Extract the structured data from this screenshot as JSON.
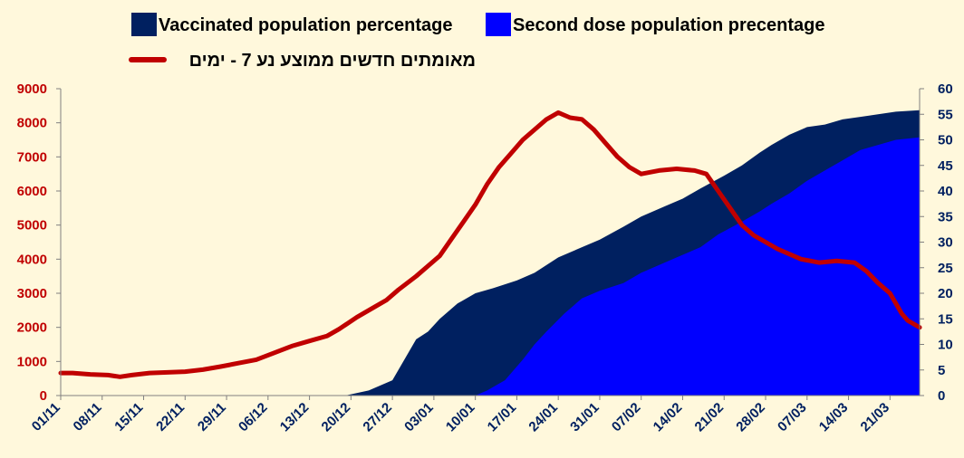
{
  "chart_data": {
    "type": "area",
    "legend": {
      "placement": "top",
      "items": [
        {
          "label": "Vaccinated population percentage",
          "color": "#002060",
          "kind": "box"
        },
        {
          "label": "Second dose population precentage",
          "color": "#0000ff",
          "kind": "box"
        },
        {
          "label": "מאומתים חדשים ממוצע נע 7 - ימים",
          "color": "#c00000",
          "kind": "line"
        }
      ]
    },
    "x_tick_labels": [
      "01/11",
      "08/11",
      "15/11",
      "22/11",
      "29/11",
      "06/12",
      "13/12",
      "20/12",
      "27/12",
      "03/01",
      "10/01",
      "17/01",
      "24/01",
      "31/01",
      "07/02",
      "14/02",
      "21/02",
      "28/02",
      "07/03",
      "14/03",
      "21/03"
    ],
    "x_range_days": [
      0,
      145
    ],
    "y_left": {
      "min": 0,
      "max": 9000,
      "ticks": [
        "0",
        "1000",
        "2000",
        "3000",
        "4000",
        "5000",
        "6000",
        "7000",
        "8000",
        "9000"
      ]
    },
    "y_right": {
      "min": 0,
      "max": 60,
      "ticks": [
        "0",
        "5",
        "10",
        "15",
        "20",
        "25",
        "30",
        "35",
        "40",
        "45",
        "50",
        "55",
        "60"
      ]
    },
    "grid": false,
    "series": [
      {
        "name": "Vaccinated population percentage",
        "type": "area",
        "axis": "right",
        "color": "#002060",
        "points": [
          [
            0,
            0
          ],
          [
            48,
            0
          ],
          [
            52,
            1
          ],
          [
            56,
            3
          ],
          [
            60,
            11
          ],
          [
            62,
            12.5
          ],
          [
            64,
            15
          ],
          [
            67,
            18
          ],
          [
            70,
            20
          ],
          [
            73,
            21
          ],
          [
            77,
            22.5
          ],
          [
            80,
            24
          ],
          [
            84,
            27
          ],
          [
            88,
            29
          ],
          [
            91,
            30.5
          ],
          [
            95,
            33
          ],
          [
            98,
            35
          ],
          [
            102,
            37
          ],
          [
            105,
            38.5
          ],
          [
            108,
            40.5
          ],
          [
            112,
            43
          ],
          [
            115,
            45
          ],
          [
            118,
            47.5
          ],
          [
            120,
            49
          ],
          [
            123,
            51
          ],
          [
            126,
            52.5
          ],
          [
            129,
            53
          ],
          [
            132,
            54
          ],
          [
            135,
            54.5
          ],
          [
            138,
            55
          ],
          [
            141,
            55.5
          ],
          [
            145,
            55.8
          ]
        ]
      },
      {
        "name": "Second dose population precentage",
        "type": "area",
        "axis": "right",
        "color": "#0000ff",
        "points": [
          [
            0,
            0
          ],
          [
            70,
            0
          ],
          [
            72,
            1
          ],
          [
            75,
            3
          ],
          [
            78,
            7
          ],
          [
            80,
            10
          ],
          [
            82,
            12.5
          ],
          [
            85,
            16
          ],
          [
            88,
            19
          ],
          [
            91,
            20.5
          ],
          [
            95,
            22
          ],
          [
            98,
            24
          ],
          [
            101,
            25.5
          ],
          [
            104,
            27
          ],
          [
            108,
            29
          ],
          [
            111,
            31.5
          ],
          [
            115,
            34
          ],
          [
            118,
            36
          ],
          [
            120,
            37.5
          ],
          [
            123,
            39.5
          ],
          [
            126,
            42
          ],
          [
            129,
            44
          ],
          [
            132,
            46
          ],
          [
            135,
            48
          ],
          [
            138,
            49
          ],
          [
            141,
            50
          ],
          [
            145,
            50.5
          ]
        ]
      },
      {
        "name": "מאומתים חדשים ממוצע נע 7 - ימים",
        "type": "line",
        "axis": "left",
        "color": "#c00000",
        "points": [
          [
            0,
            660
          ],
          [
            2,
            660
          ],
          [
            5,
            620
          ],
          [
            8,
            600
          ],
          [
            10,
            550
          ],
          [
            12,
            600
          ],
          [
            15,
            660
          ],
          [
            18,
            680
          ],
          [
            21,
            700
          ],
          [
            24,
            760
          ],
          [
            27,
            850
          ],
          [
            30,
            950
          ],
          [
            33,
            1050
          ],
          [
            36,
            1250
          ],
          [
            39,
            1450
          ],
          [
            42,
            1600
          ],
          [
            45,
            1750
          ],
          [
            47,
            1950
          ],
          [
            50,
            2300
          ],
          [
            53,
            2600
          ],
          [
            55,
            2800
          ],
          [
            57,
            3100
          ],
          [
            60,
            3500
          ],
          [
            62,
            3800
          ],
          [
            64,
            4100
          ],
          [
            66,
            4600
          ],
          [
            68,
            5100
          ],
          [
            70,
            5600
          ],
          [
            72,
            6200
          ],
          [
            74,
            6700
          ],
          [
            76,
            7100
          ],
          [
            78,
            7500
          ],
          [
            80,
            7800
          ],
          [
            82,
            8100
          ],
          [
            84,
            8300
          ],
          [
            86,
            8150
          ],
          [
            88,
            8100
          ],
          [
            90,
            7800
          ],
          [
            92,
            7400
          ],
          [
            94,
            7000
          ],
          [
            96,
            6700
          ],
          [
            98,
            6500
          ],
          [
            101,
            6600
          ],
          [
            104,
            6650
          ],
          [
            107,
            6600
          ],
          [
            109,
            6500
          ],
          [
            111,
            6000
          ],
          [
            113,
            5500
          ],
          [
            115,
            5000
          ],
          [
            117,
            4700
          ],
          [
            119,
            4500
          ],
          [
            121,
            4300
          ],
          [
            123,
            4150
          ],
          [
            125,
            4000
          ],
          [
            128,
            3900
          ],
          [
            131,
            3950
          ],
          [
            134,
            3900
          ],
          [
            136,
            3650
          ],
          [
            138,
            3300
          ],
          [
            140,
            3000
          ],
          [
            141,
            2700
          ],
          [
            142,
            2400
          ],
          [
            143,
            2200
          ],
          [
            145,
            2000
          ]
        ]
      }
    ]
  }
}
